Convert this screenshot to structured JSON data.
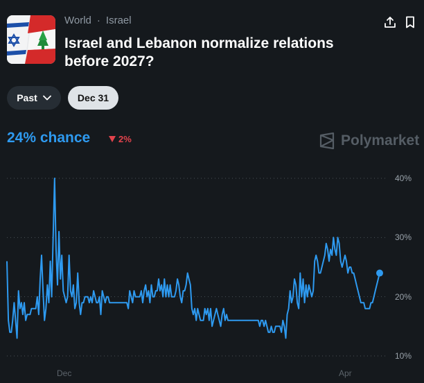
{
  "header": {
    "breadcrumb": [
      "World",
      "Israel"
    ],
    "separator": "·",
    "title": "Israel and Lebanon normalize relations before 2027?"
  },
  "controls": {
    "past_label": "Past",
    "date_label": "Dec 31"
  },
  "summary": {
    "chance_text": "24% chance",
    "change_text": "2%",
    "change_direction": "down",
    "brand": "Polymarket"
  },
  "colors": {
    "accent": "#2e9af0",
    "negative": "#e2434c"
  },
  "chart_data": {
    "type": "line",
    "xlabel": "",
    "ylabel": "",
    "ylim": [
      10,
      40
    ],
    "y_ticks": [
      40,
      30,
      20,
      10
    ],
    "y_tick_labels": [
      "40%",
      "30%",
      "20%",
      "10%"
    ],
    "x_tick_labels": [
      "Dec",
      "Apr"
    ],
    "grid": true,
    "series": [
      {
        "values": [
          26,
          16,
          14,
          14,
          16,
          19,
          16,
          13,
          21,
          18,
          19,
          17,
          19,
          16,
          17,
          17,
          17,
          18,
          18,
          18,
          18,
          20,
          17,
          23,
          27,
          21,
          16,
          18,
          22,
          19,
          26,
          20,
          30,
          40,
          28,
          22,
          31,
          23,
          27,
          21,
          20,
          19,
          20,
          27,
          21,
          20,
          22,
          18,
          19,
          24,
          19,
          17,
          19,
          19,
          20,
          20,
          20,
          19,
          20,
          19,
          21,
          20,
          19,
          19,
          20,
          17,
          21,
          20,
          19,
          20,
          20,
          19,
          19,
          19,
          19,
          19,
          19,
          19,
          19,
          19,
          19,
          19,
          19,
          19,
          18,
          21,
          20,
          19,
          21,
          20,
          20,
          20,
          20,
          21,
          19,
          21,
          22,
          20,
          21,
          19,
          22,
          20,
          20,
          21,
          21,
          23,
          21,
          22,
          20,
          23,
          20,
          22,
          20,
          22,
          20,
          20,
          20,
          21,
          23,
          22,
          20,
          19,
          21,
          21,
          22,
          24,
          23,
          22,
          18,
          17,
          18,
          16,
          18,
          17,
          16,
          16,
          16,
          18,
          17,
          18,
          16,
          18,
          15,
          16,
          17,
          18,
          17,
          16,
          15,
          17,
          18,
          16,
          17,
          16,
          16,
          16,
          16,
          16,
          16,
          16,
          16,
          16,
          16,
          16,
          16,
          16,
          16,
          16,
          16,
          16,
          16,
          16,
          16,
          16,
          16,
          15,
          16,
          16,
          15,
          16,
          15,
          14,
          14,
          15,
          14,
          14,
          15,
          15,
          15,
          15,
          14,
          16,
          15,
          13,
          17,
          18,
          21,
          19,
          20,
          23,
          22,
          19,
          18,
          24,
          20,
          23,
          19,
          22,
          20,
          22,
          21,
          20,
          21,
          26,
          27,
          26,
          24,
          24,
          25,
          26,
          27,
          29,
          28,
          26,
          28,
          27,
          30,
          28,
          27,
          30,
          29,
          26,
          25,
          26,
          27,
          26,
          24,
          25,
          25,
          24,
          24,
          23,
          22,
          21,
          20,
          19,
          19,
          19,
          18,
          18,
          18,
          18,
          19,
          19,
          20,
          21,
          22,
          23,
          24
        ]
      }
    ]
  }
}
